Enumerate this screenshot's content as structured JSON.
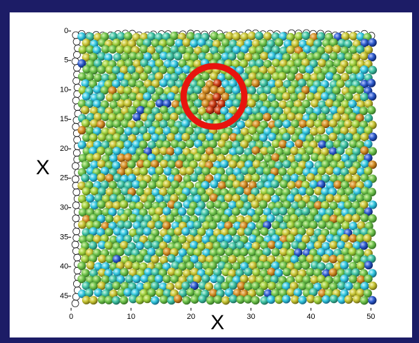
{
  "chart_data": {
    "type": "particles",
    "x_label": "X",
    "y_label": "X",
    "xlim": [
      0,
      51
    ],
    "xticks": [
      0,
      10,
      20,
      30,
      40,
      50
    ],
    "ylim": [
      0,
      47
    ],
    "yticks": [
      0,
      5,
      10,
      15,
      20,
      25,
      30,
      35,
      40,
      45
    ],
    "y_reversed": true
  }
}
